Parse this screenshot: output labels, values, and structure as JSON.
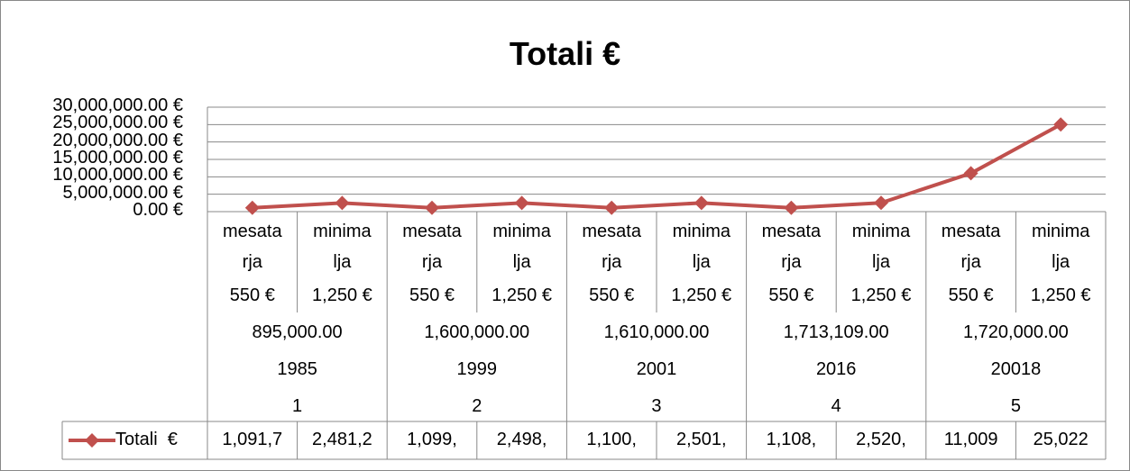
{
  "chart_data": {
    "type": "line",
    "title": "Totali  €",
    "categories": [
      "mesatarja",
      "minimalja",
      "mesatarja",
      "minimalja",
      "mesatarja",
      "minimalja",
      "mesatarja",
      "minimalja",
      "mesatarja",
      "minimalja"
    ],
    "subcategories": [
      "550 €",
      "1,250 €",
      "550 €",
      "1,250 €",
      "550 €",
      "1,250 €",
      "550 €",
      "1,250 €",
      "550 €",
      "1,250 €"
    ],
    "group_levels": [
      [
        "895,000.00",
        "1,600,000.00",
        "1,610,000.00",
        "1,713,109.00",
        "1,720,000.00"
      ],
      [
        "1985",
        "1999",
        "2001",
        "2016",
        "20018"
      ],
      [
        "1",
        "2",
        "3",
        "4",
        "5"
      ]
    ],
    "series": [
      {
        "name": "Totali  €",
        "color": "#c0504d",
        "values": [
          1091700,
          2481200,
          1099000,
          2498000,
          1100000,
          2501000,
          1108000,
          2520000,
          11009000,
          25022000
        ],
        "value_labels": [
          "1,091,7",
          "2,481,2",
          "1,099,",
          "2,498,",
          "1,100,",
          "2,501,",
          "1,108,",
          "2,520,",
          "11,009",
          "25,022"
        ]
      }
    ],
    "ylim": [
      0,
      30000000
    ],
    "yticks": [
      {
        "value": 0,
        "label": "0.00 €"
      },
      {
        "value": 5000000,
        "label": "5,000,000.00 €"
      },
      {
        "value": 10000000,
        "label": "10,000,000.00 €"
      },
      {
        "value": 15000000,
        "label": "15,000,000.00 €"
      },
      {
        "value": 20000000,
        "label": "20,000,000.00 €"
      },
      {
        "value": 25000000,
        "label": "25,000,000.00 €"
      },
      {
        "value": 30000000,
        "label": "30,000,000.00 €"
      }
    ],
    "grid": true
  }
}
